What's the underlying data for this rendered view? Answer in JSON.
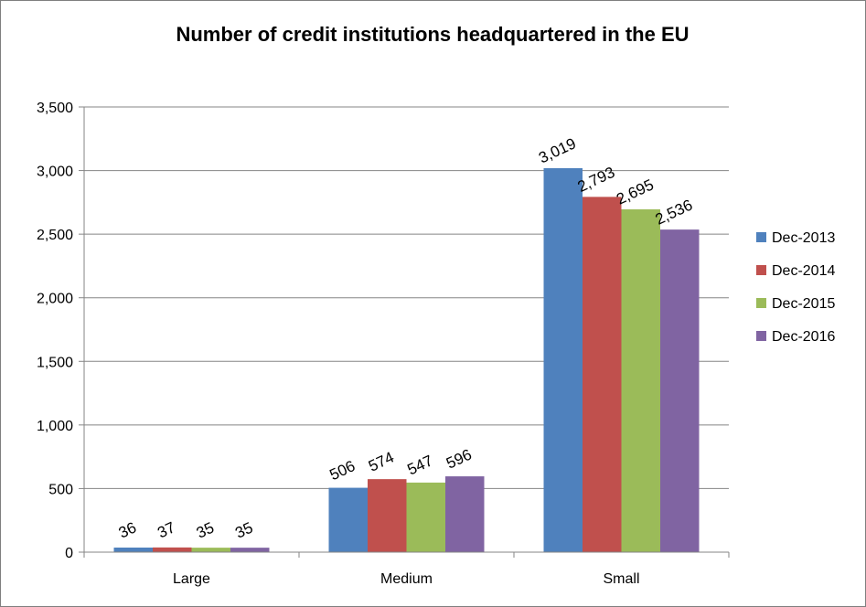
{
  "chart_data": {
    "type": "bar",
    "title": "Number of credit institutions headquartered in the EU",
    "xlabel": "",
    "ylabel": "",
    "categories": [
      "Large",
      "Medium",
      "Small"
    ],
    "series": [
      {
        "name": "Dec-2013",
        "color": "#4f81bd",
        "values": [
          36,
          506,
          3019
        ]
      },
      {
        "name": "Dec-2014",
        "color": "#c0504d",
        "values": [
          37,
          574,
          2793
        ]
      },
      {
        "name": "Dec-2015",
        "color": "#9bbb59",
        "values": [
          35,
          547,
          2695
        ]
      },
      {
        "name": "Dec-2016",
        "color": "#8064a2",
        "values": [
          35,
          596,
          2536
        ]
      }
    ],
    "ylim": [
      0,
      3500
    ],
    "yticks": [
      0,
      500,
      1000,
      1500,
      2000,
      2500,
      3000,
      3500
    ],
    "ytick_labels": [
      "0",
      "500",
      "1,000",
      "1,500",
      "2,000",
      "2,500",
      "3,000",
      "3,500"
    ],
    "data_labels": [
      [
        "36",
        "506",
        "3,019"
      ],
      [
        "37",
        "574",
        "2,793"
      ],
      [
        "35",
        "547",
        "2,695"
      ],
      [
        "35",
        "596",
        "2,536"
      ]
    ],
    "grid": true,
    "legend": "right"
  }
}
